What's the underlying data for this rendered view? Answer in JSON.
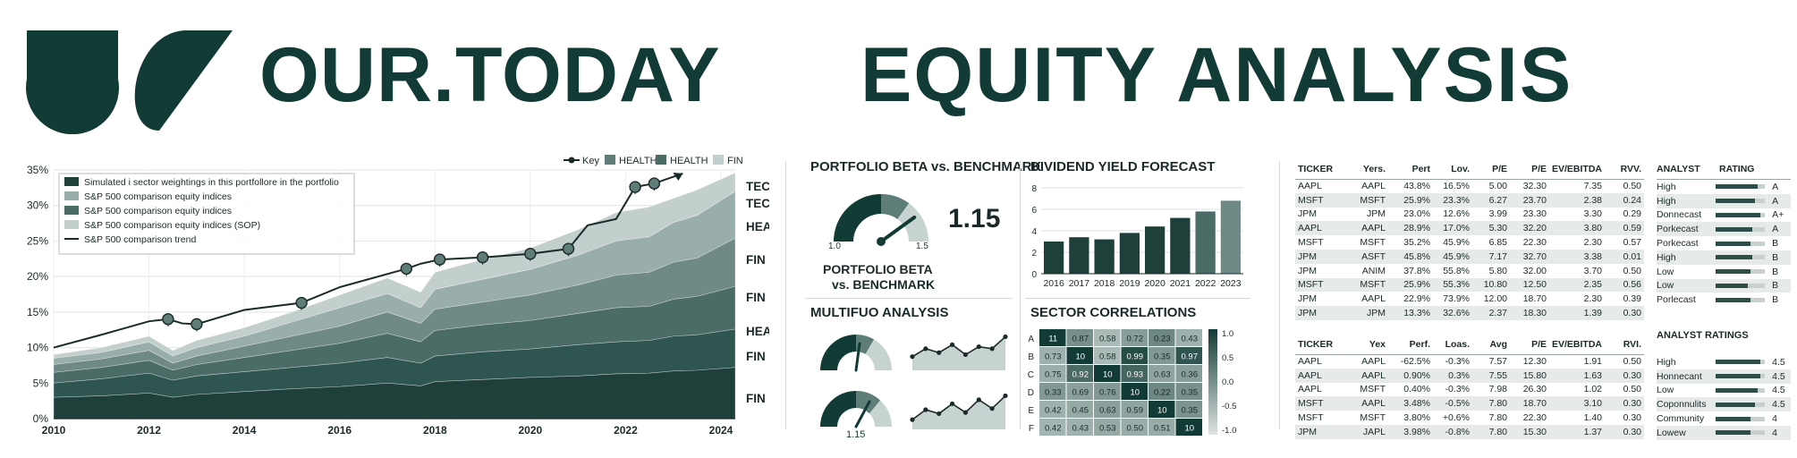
{
  "header": {
    "brand": "OUR.TODAY",
    "title": "EQUITY ANALYSIS"
  },
  "colors": {
    "dark": "#123b35",
    "accent": "#5f7d78",
    "light": "#c7d3d0"
  },
  "main_chart": {
    "legend_top": [
      "Key",
      "HEALTH",
      "HEALTH",
      "FIN"
    ],
    "legend_box": [
      "Simulated i sector weightings in this portfollore in the portfolio",
      "S&P 500 comparison equity indices",
      "S&P 500 comparison equity indices",
      "S&P 500 comparison equity indices (SOP)",
      "S&P 500 comparison trend"
    ],
    "end_labels": [
      "TECH",
      "TECH",
      "HEALTH",
      "FIN",
      "FIN",
      "HEALTH",
      "FIN",
      "FIN"
    ]
  },
  "beta": {
    "title": "PORTFOLIO BETA vs. BENCHMARK",
    "value": "1.15",
    "min_label": "1.0",
    "max_label": "1.5",
    "caption_1": "PORTFOLIO BETA",
    "caption_2": "vs. BENCHMARK",
    "level": 0.3
  },
  "multi": {
    "title": "MULTIFUO ANALYSIS",
    "gauge_value": "1.15"
  },
  "dividend": {
    "title": "DIVIDEND YIELD FORECAST"
  },
  "correlations": {
    "title": "SECTOR CORRELATIONS",
    "rows": [
      "A",
      "B",
      "C",
      "D",
      "E",
      "F"
    ],
    "matrix": [
      [
        "11",
        "0.87",
        "0.58",
        "0.72",
        "0.23",
        "0.43"
      ],
      [
        "0.73",
        "10",
        "0.58",
        "0.99",
        "0.35",
        "0.97"
      ],
      [
        "0.75",
        "0.92",
        "10",
        "0.93",
        "0.63",
        "0.36"
      ],
      [
        "0.33",
        "0.69",
        "0.76",
        "10",
        "0.22",
        "0.35"
      ],
      [
        "0.42",
        "0.45",
        "0.63",
        "0.59",
        "10",
        "0.35"
      ],
      [
        "0.42",
        "0.43",
        "0.53",
        "0.50",
        "0.51",
        "10"
      ]
    ],
    "scale_labels": [
      "1.0",
      "0.5",
      "0.0",
      "-0.5",
      "-1.0"
    ]
  },
  "table1": {
    "headers": [
      "TICKER",
      "Yers.",
      "Pert",
      "Lov.",
      "P/E",
      "P/E",
      "EV/EBITDA",
      "RVV."
    ],
    "rows": [
      [
        "AAPL",
        "AAPL",
        "43.8%",
        "16.5%",
        "5.00",
        "32.30",
        "7.35",
        "0.50"
      ],
      [
        "MSFT",
        "MSFT",
        "25.9%",
        "23.3%",
        "6.27",
        "23.70",
        "2.38",
        "0.24"
      ],
      [
        "JPM",
        "JPM",
        "23.0%",
        "12.6%",
        "3.99",
        "23.30",
        "3.30",
        "0.29"
      ],
      [
        "AAPL",
        "AAPL",
        "28.9%",
        "17.0%",
        "5.30",
        "32.20",
        "3.80",
        "0.59"
      ],
      [
        "MSFT",
        "MSFT",
        "35.2%",
        "45.9%",
        "6.85",
        "22.30",
        "2.30",
        "0.57"
      ],
      [
        "JPM",
        "ASFT",
        "45.8%",
        "45.9%",
        "7.17",
        "32.70",
        "3.38",
        "0.01"
      ],
      [
        "JPM",
        "ANIM",
        "37.8%",
        "55.8%",
        "5.80",
        "32.00",
        "3.70",
        "0.50"
      ],
      [
        "MSFT",
        "MSFT",
        "25.9%",
        "55.3%",
        "10.80",
        "12.50",
        "2.35",
        "0.56"
      ],
      [
        "JPM",
        "AAPL",
        "22.9%",
        "73.9%",
        "12.00",
        "18.70",
        "2.30",
        "0.39"
      ],
      [
        "JPM",
        "JPM",
        "13.3%",
        "32.6%",
        "2.37",
        "18.30",
        "1.39",
        "0.30"
      ]
    ]
  },
  "table2": {
    "headers": [
      "TICKER",
      "Yex",
      "Perf.",
      "Loas.",
      "Avg",
      "P/E",
      "EV/EBITDA",
      "RVI."
    ],
    "rows": [
      [
        "AAPL",
        "AAPL",
        "-62.5%",
        "-0.3%",
        "7.57",
        "12.30",
        "1.91",
        "0.50"
      ],
      [
        "AAPL",
        "AAPL",
        "0.90%",
        "0.3%",
        "7.55",
        "15.80",
        "1.63",
        "0.30"
      ],
      [
        "AAPL",
        "MSFT",
        "0.40%",
        "-0.3%",
        "7.98",
        "26.30",
        "1.02",
        "0.50"
      ],
      [
        "MSFT",
        "AAPL",
        "3.48%",
        "-0.5%",
        "7.80",
        "18.70",
        "3.10",
        "0.30"
      ],
      [
        "MSFT",
        "MSFT",
        "3.80%",
        "+0.6%",
        "7.80",
        "22.30",
        "1.40",
        "0.30"
      ],
      [
        "JPM",
        "JAPL",
        "3.98%",
        "-0.8%",
        "7.80",
        "15.30",
        "1.37",
        "0.30"
      ]
    ]
  },
  "analyst": {
    "header_1": "ANALYST",
    "header_2": "RATING",
    "rows": [
      {
        "label": "High",
        "rating": "A",
        "level": 0.85
      },
      {
        "label": "High",
        "rating": "A",
        "level": 0.8
      },
      {
        "label": "Donnecast",
        "rating": "A+",
        "level": 0.9
      },
      {
        "label": "Porkecast",
        "rating": "A",
        "level": 0.75
      },
      {
        "label": "Porkecast",
        "rating": "B",
        "level": 0.7
      },
      {
        "label": "High",
        "rating": "B",
        "level": 0.75
      },
      {
        "label": "Low",
        "rating": "B",
        "level": 0.7
      },
      {
        "label": "Low",
        "rating": "B",
        "level": 0.65
      },
      {
        "label": "Porlecast",
        "rating": "B",
        "level": 0.7
      }
    ]
  },
  "analyst_ratings": {
    "title": "ANALYST RATINGS",
    "rows": [
      {
        "label": "High",
        "value": "4.5",
        "level": 0.9
      },
      {
        "label": "Honnecant",
        "value": "4.5",
        "level": 0.9
      },
      {
        "label": "Low",
        "value": "4.5",
        "level": 0.85
      },
      {
        "label": "Coponnulits",
        "value": "4.5",
        "level": 0.8
      },
      {
        "label": "Community",
        "value": "4",
        "level": 0.7
      },
      {
        "label": "Lowew",
        "value": "4",
        "level": 0.7
      }
    ]
  },
  "chart_data": [
    {
      "type": "area",
      "title": "",
      "xlabel": "",
      "ylabel": "",
      "x_ticks": [
        "2010",
        "2012",
        "2014",
        "2016",
        "2018",
        "2020",
        "2022",
        "2024"
      ],
      "y_ticks": [
        "0%",
        "5%",
        "10%",
        "15%",
        "20%",
        "25%",
        "30%",
        "35%"
      ],
      "xlim": [
        2010,
        2024.3
      ],
      "ylim": [
        0,
        35
      ],
      "grid": true,
      "legend": "top-left",
      "x": [
        2010,
        2011,
        2012,
        2012.5,
        2013,
        2014,
        2015,
        2016,
        2017,
        2017.7,
        2018,
        2019,
        2020,
        2021,
        2021.8,
        2022.5,
        2023,
        2023.5,
        2024.3
      ],
      "series": [
        {
          "values": [
            3.0,
            3.2,
            3.6,
            3.0,
            3.4,
            3.8,
            4.2,
            4.5,
            5.0,
            4.6,
            5.2,
            5.5,
            5.8,
            6.0,
            6.3,
            6.4,
            6.7,
            6.8,
            7.2
          ]
        },
        {
          "values": [
            5.0,
            5.6,
            6.4,
            5.4,
            6.0,
            6.6,
            7.2,
            7.8,
            8.6,
            7.8,
            8.8,
            9.4,
            9.8,
            10.4,
            10.8,
            11.0,
            11.6,
            11.8,
            12.6
          ]
        },
        {
          "values": [
            6.5,
            7.2,
            8.2,
            6.8,
            7.6,
            8.6,
            9.6,
            10.6,
            12.0,
            10.8,
            12.4,
            13.2,
            13.8,
            14.8,
            15.6,
            15.8,
            16.8,
            17.2,
            18.6
          ]
        },
        {
          "values": [
            7.6,
            8.4,
            9.6,
            7.8,
            8.8,
            10.2,
            11.6,
            13.0,
            15.0,
            13.4,
            15.4,
            16.4,
            17.4,
            18.8,
            20.2,
            20.6,
            22.0,
            22.6,
            25.4
          ]
        },
        {
          "values": [
            8.5,
            9.3,
            10.8,
            8.8,
            10.0,
            11.6,
            13.6,
            15.6,
            17.6,
            15.6,
            18.2,
            19.6,
            21.0,
            23.0,
            25.0,
            25.6,
            27.6,
            28.6,
            32.0
          ]
        },
        {
          "values": [
            9.0,
            10.0,
            11.6,
            9.6,
            11.0,
            12.8,
            15.0,
            17.4,
            19.8,
            17.8,
            20.6,
            22.4,
            24.0,
            26.6,
            29.0,
            29.8,
            31.0,
            32.2,
            34.6
          ]
        }
      ],
      "trend": {
        "name": "S&P 500 comparison trend",
        "x": [
          2010,
          2011,
          2012,
          2012.4,
          2012.7,
          2013,
          2014,
          2015.2,
          2016,
          2017.4,
          2017.7,
          2018.1,
          2019,
          2020,
          2020.8,
          2021.2,
          2021.8,
          2022.2,
          2022.6,
          2023.2
        ],
        "values": [
          10.0,
          11.8,
          13.7,
          14.0,
          13.4,
          13.3,
          15.3,
          16.3,
          18.5,
          21.1,
          21.8,
          22.4,
          22.7,
          23.2,
          23.9,
          27.2,
          28.1,
          32.6,
          33.1,
          34.5
        ],
        "markers_x": [
          2012.4,
          2013,
          2015.2,
          2017.4,
          2018.1,
          2019,
          2020,
          2020.8,
          2022.2,
          2022.6
        ]
      }
    },
    {
      "type": "bar",
      "title": "DIVIDEND YIELD FORECAST",
      "categories": [
        "2016",
        "2017",
        "2018",
        "2019",
        "2020",
        "2021",
        "2022",
        "2023"
      ],
      "values": [
        3.0,
        3.4,
        3.2,
        3.8,
        4.4,
        5.2,
        5.8,
        6.8
      ],
      "y_ticks": [
        "0",
        "2",
        "4",
        "6",
        "8"
      ],
      "ylim": [
        0,
        8
      ],
      "grid": true
    },
    {
      "type": "line",
      "title": "MULTIFUO ANALYSIS",
      "series": [
        {
          "values": [
            3,
            5,
            4,
            6,
            3.5,
            5.5,
            5,
            8
          ]
        },
        {
          "values": [
            2,
            4.5,
            3.5,
            6,
            3.8,
            7,
            4.8,
            8
          ]
        }
      ]
    },
    {
      "type": "heatmap",
      "title": "SECTOR CORRELATIONS",
      "rows": [
        "A",
        "B",
        "C",
        "D",
        "E",
        "F"
      ],
      "cells_shading": [
        [
          1.0,
          0.5,
          0.25,
          0.42,
          0.55,
          0.3
        ],
        [
          0.3,
          1.0,
          0.25,
          0.9,
          0.45,
          0.85
        ],
        [
          0.32,
          0.72,
          1.0,
          0.75,
          0.38,
          0.42
        ],
        [
          0.45,
          0.4,
          0.45,
          1.0,
          0.55,
          0.5
        ],
        [
          0.3,
          0.35,
          0.4,
          0.38,
          1.0,
          0.48
        ],
        [
          0.28,
          0.3,
          0.35,
          0.33,
          0.34,
          1.0
        ]
      ]
    }
  ]
}
